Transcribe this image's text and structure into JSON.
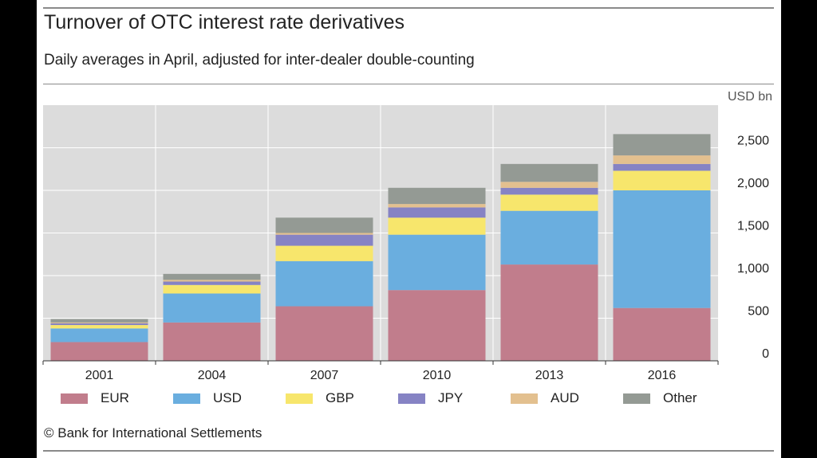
{
  "chart_data": {
    "type": "bar",
    "stacked": true,
    "title": "Turnover of OTC interest rate derivatives",
    "subtitle": "Daily averages in April, adjusted for inter-dealer double-counting",
    "unit_label": "USD bn",
    "source": "© Bank for International Settlements",
    "categories": [
      "2001",
      "2004",
      "2007",
      "2010",
      "2013",
      "2016"
    ],
    "ylim": [
      0,
      3000
    ],
    "yticks": [
      0,
      500,
      1000,
      1500,
      2000,
      2500
    ],
    "ytick_labels": [
      "0",
      "500",
      "1,000",
      "1,500",
      "2,000",
      "2,500"
    ],
    "grid": true,
    "legend_position": "bottom",
    "series": [
      {
        "name": "EUR",
        "color": "#c17d8c",
        "values": [
          220,
          450,
          640,
          830,
          1130,
          620
        ]
      },
      {
        "name": "USD",
        "color": "#6aaedf",
        "values": [
          160,
          340,
          530,
          650,
          630,
          1380
        ]
      },
      {
        "name": "GBP",
        "color": "#f7e66c",
        "values": [
          40,
          100,
          180,
          200,
          190,
          230
        ]
      },
      {
        "name": "JPY",
        "color": "#8683c4",
        "values": [
          20,
          40,
          130,
          120,
          80,
          80
        ]
      },
      {
        "name": "AUD",
        "color": "#e3c08f",
        "values": [
          10,
          20,
          20,
          40,
          70,
          100
        ]
      },
      {
        "name": "Other",
        "color": "#949a94",
        "values": [
          40,
          70,
          180,
          190,
          210,
          250
        ]
      }
    ]
  }
}
